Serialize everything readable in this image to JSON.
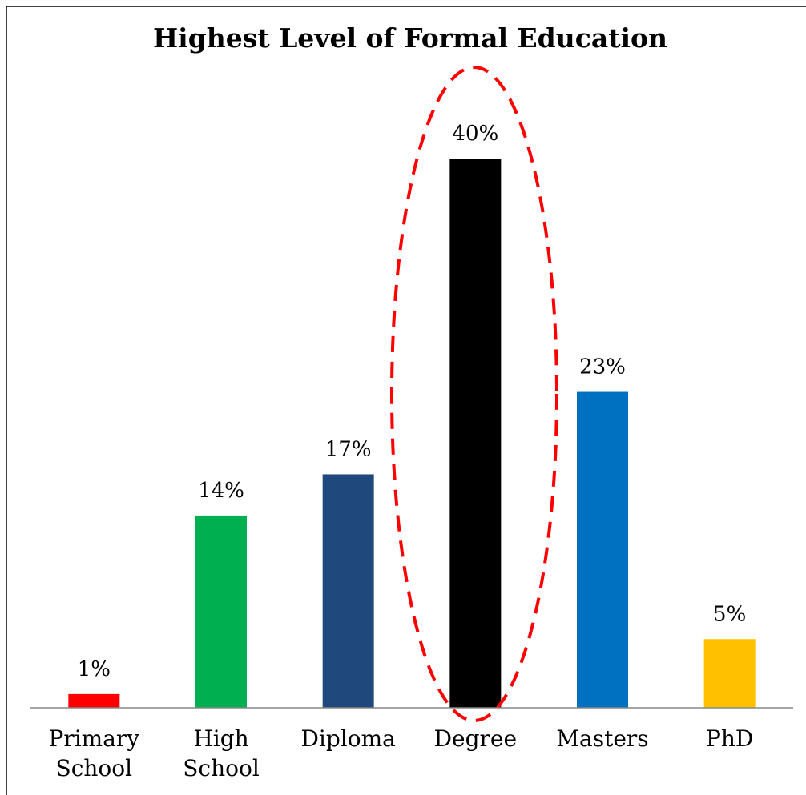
{
  "chart_data": {
    "type": "bar",
    "title": "Highest Level of Formal Education",
    "categories": [
      "Primary School",
      "High School",
      "Diploma",
      "Degree",
      "Masters",
      "PhD"
    ],
    "values": [
      1,
      14,
      17,
      40,
      23,
      5
    ],
    "value_labels": [
      "1%",
      "14%",
      "17%",
      "40%",
      "23%",
      "5%"
    ],
    "colors": [
      "#ff0000",
      "#00b050",
      "#1f497d",
      "#000000",
      "#0070c0",
      "#ffc000"
    ],
    "ylim": [
      0,
      40
    ]
  }
}
